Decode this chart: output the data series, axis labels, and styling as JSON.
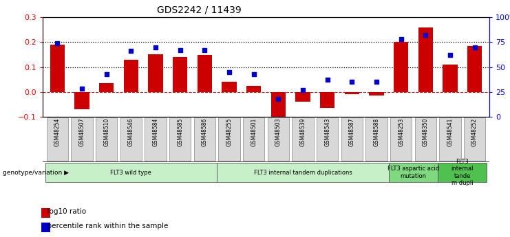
{
  "title": "GDS2242 / 11439",
  "samples": [
    "GSM48254",
    "GSM48507",
    "GSM48510",
    "GSM48546",
    "GSM48584",
    "GSM48585",
    "GSM48586",
    "GSM48255",
    "GSM48501",
    "GSM48503",
    "GSM48539",
    "GSM48543",
    "GSM48587",
    "GSM48588",
    "GSM48253",
    "GSM48350",
    "GSM48541",
    "GSM48252"
  ],
  "log10_ratio": [
    0.19,
    -0.07,
    0.035,
    0.13,
    0.15,
    0.14,
    0.148,
    0.04,
    0.025,
    -0.13,
    -0.04,
    -0.065,
    -0.01,
    -0.015,
    0.2,
    0.26,
    0.11,
    0.185
  ],
  "percentile_rank": [
    74,
    28,
    43,
    66,
    70,
    67,
    67,
    45,
    43,
    18,
    27,
    37,
    35,
    35,
    78,
    82,
    62,
    70
  ],
  "groups": [
    {
      "label": "FLT3 wild type",
      "start": 0,
      "end": 6,
      "color": "#c8f0c8"
    },
    {
      "label": "FLT3 internal tandem duplications",
      "start": 7,
      "end": 13,
      "color": "#c8f0c8"
    },
    {
      "label": "FLT3 aspartic acid\nmutation",
      "start": 14,
      "end": 15,
      "color": "#80d880"
    },
    {
      "label": "FLT3\ninternal\ntande\nm dupli",
      "start": 16,
      "end": 17,
      "color": "#50c050"
    }
  ],
  "ylim_left": [
    -0.1,
    0.3
  ],
  "ylim_right": [
    0,
    100
  ],
  "bar_color": "#cc0000",
  "dot_color": "#0000cc",
  "hline_color": "#cc0000",
  "dotted_line_color": "#000000",
  "background_color": "#ffffff",
  "tick_box_color": "#d8d8d8",
  "tick_box_edge": "#888888"
}
